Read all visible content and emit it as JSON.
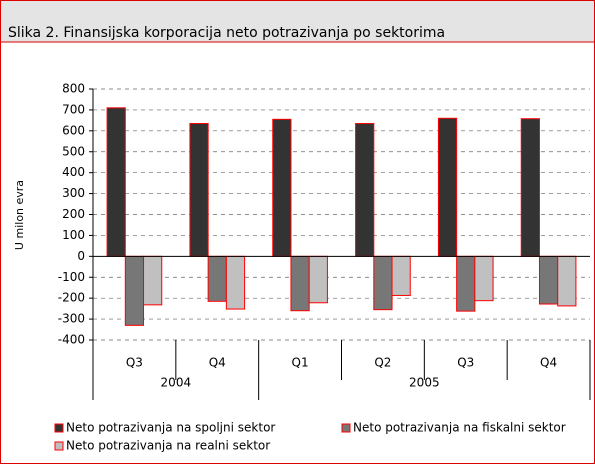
{
  "chart_data": {
    "type": "bar",
    "title": "Slika 2. Finansijska korporacija neto potrazivanja po sektorima",
    "y_label": "U milon evra",
    "categories": [
      "Q3",
      "Q4",
      "Q1",
      "Q2",
      "Q3",
      "Q4"
    ],
    "groups": [
      {
        "label": "2004",
        "span": 2
      },
      {
        "label": "2005",
        "span": 4
      }
    ],
    "series": [
      {
        "name": "Neto potrazivanja na spoljni sektor",
        "color": "#333333",
        "values": [
          710,
          635,
          655,
          635,
          660,
          658
        ]
      },
      {
        "name": "Neto potrazivanja na fiskalni sektor",
        "color": "#777777",
        "values": [
          -330,
          -215,
          -260,
          -255,
          -262,
          -228
        ]
      },
      {
        "name": "Neto potrazivanja na realni sektor",
        "color": "#c0c0c0",
        "values": [
          -232,
          -252,
          -222,
          -187,
          -212,
          -237
        ]
      }
    ],
    "bar_edge_color": "#ff0000",
    "ylim": [
      -400,
      800
    ],
    "yticks": [
      -400,
      -300,
      -200,
      -100,
      0,
      100,
      200,
      300,
      400,
      500,
      600,
      700,
      800
    ],
    "grid": true
  }
}
